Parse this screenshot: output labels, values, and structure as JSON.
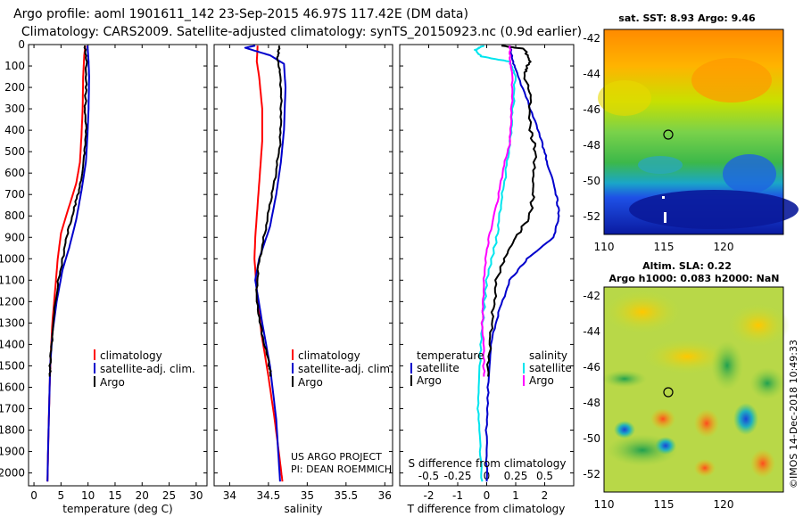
{
  "titles": {
    "line1": "Argo profile: aoml 1901611_142 23-Sep-2015 46.97S 117.42E (DM data)",
    "line2": "Climatology: CARS2009. Satellite-adjusted climatology: synTS_20150923.nc (0.9d earlier)"
  },
  "credit": {
    "line1": "US ARGO PROJECT",
    "line2": "PI: DEAN ROEMMICH"
  },
  "watermark": "©IMOS 14-Dec-2018 10:49:33",
  "colors": {
    "climatology": "#ff0000",
    "satellite": "#0000cc",
    "argo": "#000000",
    "cyan": "#00e5ee",
    "magenta": "#ff00ff"
  },
  "chart_data": [
    {
      "type": "line",
      "id": "temperature",
      "xlabel": "temperature (deg C)",
      "ylabel": "",
      "xlim": [
        -1,
        32
      ],
      "ylim": [
        2060,
        0
      ],
      "xticks": [
        "0",
        "5",
        "10",
        "15",
        "20",
        "25",
        "30"
      ],
      "yticks": [
        "0",
        "100",
        "200",
        "300",
        "400",
        "500",
        "600",
        "700",
        "800",
        "900",
        "1000",
        "1100",
        "1200",
        "1300",
        "1400",
        "1500",
        "1600",
        "1700",
        "1800",
        "1900",
        "2000"
      ],
      "legend": [
        "climatology",
        "satellite-adj. clim.",
        "Argo"
      ],
      "series": [
        {
          "name": "climatology",
          "color": "#ff0000",
          "points": [
            [
              9.5,
              5
            ],
            [
              9.3,
              50
            ],
            [
              9.1,
              150
            ],
            [
              9.0,
              300
            ],
            [
              8.8,
              420
            ],
            [
              8.5,
              550
            ],
            [
              7.8,
              650
            ],
            [
              6.2,
              780
            ],
            [
              5.0,
              880
            ],
            [
              4.4,
              1000
            ],
            [
              3.9,
              1150
            ],
            [
              3.4,
              1300
            ],
            [
              3.1,
              1450
            ],
            [
              2.9,
              1600
            ],
            [
              2.7,
              1800
            ],
            [
              2.5,
              2040
            ]
          ]
        },
        {
          "name": "satellite-adj. clim.",
          "color": "#0000cc",
          "points": [
            [
              9.9,
              5
            ],
            [
              10.1,
              80
            ],
            [
              10.2,
              150
            ],
            [
              10.1,
              300
            ],
            [
              9.9,
              420
            ],
            [
              9.6,
              550
            ],
            [
              8.8,
              680
            ],
            [
              7.8,
              820
            ],
            [
              6.5,
              950
            ],
            [
              5.3,
              1050
            ],
            [
              4.2,
              1200
            ],
            [
              3.4,
              1350
            ],
            [
              3.0,
              1500
            ],
            [
              2.8,
              1700
            ],
            [
              2.6,
              1900
            ],
            [
              2.5,
              2040
            ]
          ]
        },
        {
          "name": "Argo",
          "color": "#000000",
          "points": [
            [
              9.4,
              5
            ],
            [
              9.7,
              80
            ],
            [
              9.6,
              200
            ],
            [
              9.5,
              300
            ],
            [
              9.6,
              420
            ],
            [
              9.3,
              520
            ],
            [
              8.6,
              650
            ],
            [
              7.5,
              760
            ],
            [
              6.2,
              880
            ],
            [
              5.3,
              1000
            ],
            [
              4.4,
              1120
            ],
            [
              3.8,
              1250
            ],
            [
              3.3,
              1380
            ],
            [
              3.0,
              1500
            ],
            [
              2.9,
              1550
            ]
          ]
        }
      ]
    },
    {
      "type": "line",
      "id": "salinity",
      "xlabel": "salinity",
      "ylabel": "",
      "xlim": [
        33.8,
        36.1
      ],
      "ylim": [
        2060,
        0
      ],
      "xticks": [
        "34",
        "34.5",
        "35",
        "35.5",
        "36"
      ],
      "legend": [
        "climatology",
        "satellite-adj. clim.",
        "Argo"
      ],
      "series": [
        {
          "name": "climatology",
          "color": "#ff0000",
          "points": [
            [
              34.36,
              5
            ],
            [
              34.35,
              80
            ],
            [
              34.38,
              150
            ],
            [
              34.42,
              300
            ],
            [
              34.42,
              450
            ],
            [
              34.39,
              600
            ],
            [
              34.36,
              750
            ],
            [
              34.33,
              900
            ],
            [
              34.32,
              1000
            ],
            [
              34.35,
              1150
            ],
            [
              34.41,
              1350
            ],
            [
              34.5,
              1550
            ],
            [
              34.58,
              1750
            ],
            [
              34.65,
              1950
            ],
            [
              34.68,
              2040
            ]
          ]
        },
        {
          "name": "satellite-adj. clim.",
          "color": "#0000cc",
          "points": [
            [
              34.33,
              5
            ],
            [
              34.2,
              15
            ],
            [
              34.52,
              50
            ],
            [
              34.7,
              90
            ],
            [
              34.72,
              200
            ],
            [
              34.7,
              400
            ],
            [
              34.66,
              550
            ],
            [
              34.6,
              700
            ],
            [
              34.52,
              850
            ],
            [
              34.38,
              1000
            ],
            [
              34.33,
              1100
            ],
            [
              34.42,
              1300
            ],
            [
              34.52,
              1500
            ],
            [
              34.6,
              1750
            ],
            [
              34.65,
              2040
            ]
          ]
        },
        {
          "name": "Argo",
          "color": "#000000",
          "points": [
            [
              34.64,
              5
            ],
            [
              34.62,
              60
            ],
            [
              34.66,
              150
            ],
            [
              34.66,
              300
            ],
            [
              34.65,
              450
            ],
            [
              34.6,
              600
            ],
            [
              34.52,
              750
            ],
            [
              34.44,
              900
            ],
            [
              34.36,
              1050
            ],
            [
              34.35,
              1200
            ],
            [
              34.42,
              1350
            ],
            [
              34.51,
              1500
            ],
            [
              34.53,
              1550
            ]
          ]
        }
      ]
    },
    {
      "type": "line",
      "id": "differences",
      "xlabel": "T difference from climatology",
      "xlabel2": "S difference from climatology",
      "ylabel": "",
      "xlim": [
        -3,
        3
      ],
      "ylim": [
        2060,
        0
      ],
      "xticks": [
        "-2",
        "-1",
        "0",
        "1",
        "2"
      ],
      "xticks2": [
        "-0.5",
        "-0.25",
        "0",
        "0.25",
        "0.5"
      ],
      "legend_left_title": "temperature",
      "legend_right_title": "salinity",
      "legend": [
        "satellite",
        "Argo",
        "satellite",
        "Argo"
      ],
      "series": [
        {
          "name": "temperature satellite",
          "color": "#0000cc",
          "points": [
            [
              0.8,
              5
            ],
            [
              0.9,
              80
            ],
            [
              1.1,
              150
            ],
            [
              1.5,
              300
            ],
            [
              1.9,
              450
            ],
            [
              2.1,
              560
            ],
            [
              2.4,
              700
            ],
            [
              2.5,
              800
            ],
            [
              2.3,
              900
            ],
            [
              1.4,
              1000
            ],
            [
              0.8,
              1100
            ],
            [
              0.4,
              1250
            ],
            [
              0.15,
              1400
            ],
            [
              0.05,
              1600
            ],
            [
              0.0,
              1800
            ],
            [
              0.0,
              2040
            ]
          ]
        },
        {
          "name": "temperature Argo",
          "color": "#000000",
          "points": [
            [
              0.5,
              5
            ],
            [
              1.3,
              20
            ],
            [
              1.5,
              80
            ],
            [
              1.3,
              130
            ],
            [
              1.5,
              250
            ],
            [
              1.5,
              400
            ],
            [
              1.7,
              500
            ],
            [
              1.6,
              600
            ],
            [
              1.6,
              700
            ],
            [
              1.5,
              800
            ],
            [
              1.0,
              900
            ],
            [
              0.6,
              1000
            ],
            [
              0.35,
              1100
            ],
            [
              0.2,
              1250
            ],
            [
              0.1,
              1400
            ],
            [
              0.05,
              1550
            ]
          ]
        },
        {
          "name": "salinity satellite",
          "color": "#00e5ee",
          "points": [
            [
              -0.1,
              5
            ],
            [
              -0.4,
              25
            ],
            [
              -0.2,
              55
            ],
            [
              0.8,
              80
            ],
            [
              1.0,
              150
            ],
            [
              0.9,
              300
            ],
            [
              0.8,
              450
            ],
            [
              0.65,
              600
            ],
            [
              0.5,
              750
            ],
            [
              0.35,
              900
            ],
            [
              0.0,
              1100
            ],
            [
              -0.15,
              1300
            ],
            [
              -0.25,
              1500
            ],
            [
              -0.3,
              1700
            ],
            [
              -0.2,
              1900
            ],
            [
              -0.15,
              2040
            ]
          ]
        },
        {
          "name": "salinity Argo",
          "color": "#ff00ff",
          "points": [
            [
              0.8,
              5
            ],
            [
              0.8,
              80
            ],
            [
              0.9,
              150
            ],
            [
              0.85,
              300
            ],
            [
              0.8,
              450
            ],
            [
              0.55,
              600
            ],
            [
              0.35,
              750
            ],
            [
              0.1,
              880
            ],
            [
              -0.05,
              1000
            ],
            [
              -0.1,
              1150
            ],
            [
              -0.15,
              1300
            ],
            [
              -0.1,
              1450
            ],
            [
              -0.1,
              1550
            ]
          ]
        }
      ]
    },
    {
      "type": "heatmap",
      "id": "sst-map",
      "title": "sat. SST: 8.93 Argo: 9.46",
      "xticks": [
        "110",
        "115",
        "120"
      ],
      "yticks": [
        "-42",
        "-44",
        "-46",
        "-48",
        "-50",
        "-52"
      ],
      "xlim": [
        110,
        125
      ],
      "ylim": [
        -53,
        -41.5
      ],
      "marker": [
        117.42,
        -46.97
      ]
    },
    {
      "type": "heatmap",
      "id": "sla-map",
      "title": "Altim. SLA: 0.22",
      "title2": "Argo h1000: 0.083 h2000: NaN",
      "xticks": [
        "110",
        "115",
        "120"
      ],
      "yticks": [
        "-42",
        "-44",
        "-46",
        "-48",
        "-50",
        "-52"
      ],
      "xlim": [
        110,
        125
      ],
      "ylim": [
        -53,
        -41.5
      ],
      "marker": [
        117.42,
        -46.97
      ]
    }
  ]
}
